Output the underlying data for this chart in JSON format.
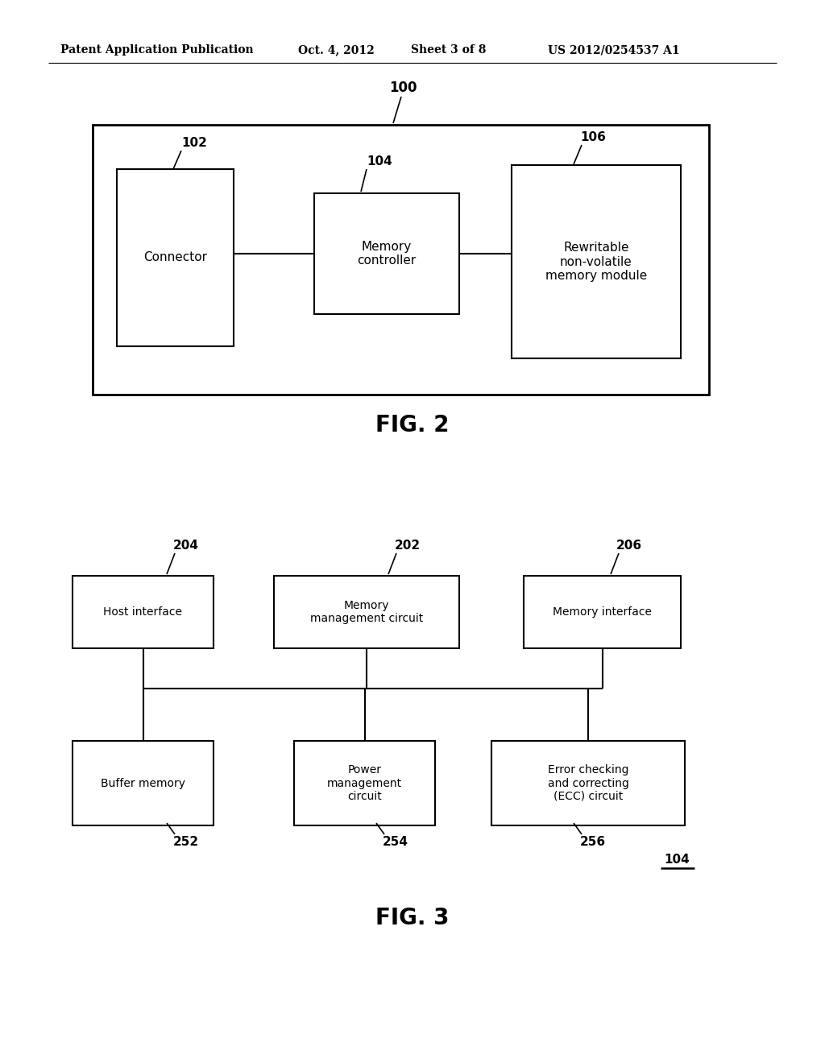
{
  "bg_color": "#ffffff",
  "header_text": "Patent Application Publication",
  "header_date": "Oct. 4, 2012",
  "header_sheet": "Sheet 3 of 8",
  "header_patent": "US 2012/0254537 A1",
  "fig2_caption": "FIG. 2",
  "fig3_caption": "FIG. 3",
  "fig2_label100": "100",
  "fig2_label102": "102",
  "fig2_label104": "104",
  "fig2_label106": "106",
  "fig2_connector_label": "Connector",
  "fig2_memory_ctrl_label": "Memory\ncontroller",
  "fig2_rewritable_label": "Rewritable\nnon-volatile\nmemory module",
  "fig3_label204": "204",
  "fig3_label202": "202",
  "fig3_label206": "206",
  "fig3_label252": "252",
  "fig3_label254": "254",
  "fig3_label256": "256",
  "fig3_label104": "104",
  "fig3_host_label": "Host interface",
  "fig3_mgmt_label": "Memory\nmanagement circuit",
  "fig3_memif_label": "Memory interface",
  "fig3_buffer_label": "Buffer memory",
  "fig3_power_label": "Power\nmanagement\ncircuit",
  "fig3_ecc_label": "Error checking\nand correcting\n(ECC) circuit"
}
